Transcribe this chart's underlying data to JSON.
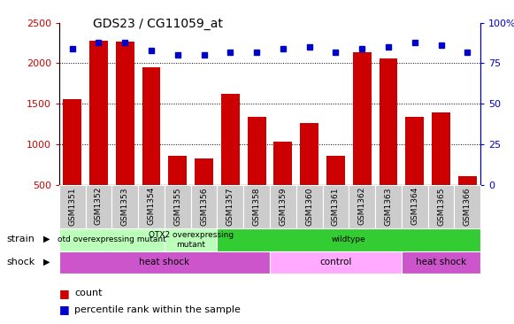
{
  "title": "GDS23 / CG11059_at",
  "samples": [
    "GSM1351",
    "GSM1352",
    "GSM1353",
    "GSM1354",
    "GSM1355",
    "GSM1356",
    "GSM1357",
    "GSM1358",
    "GSM1359",
    "GSM1360",
    "GSM1361",
    "GSM1362",
    "GSM1363",
    "GSM1364",
    "GSM1365",
    "GSM1366"
  ],
  "counts": [
    1560,
    2280,
    2270,
    1950,
    860,
    820,
    1620,
    1340,
    1030,
    1260,
    860,
    2140,
    2060,
    1340,
    1390,
    610
  ],
  "percentiles": [
    84,
    88,
    88,
    83,
    80,
    80,
    82,
    82,
    84,
    85,
    82,
    84,
    85,
    88,
    86,
    82
  ],
  "bar_color": "#cc0000",
  "dot_color": "#0000cc",
  "ylim_left": [
    500,
    2500
  ],
  "ylim_right": [
    0,
    100
  ],
  "yticks_left": [
    500,
    1000,
    1500,
    2000,
    2500
  ],
  "yticks_right": [
    0,
    25,
    50,
    75,
    100
  ],
  "grid_values": [
    1000,
    1500,
    2000
  ],
  "strain_groups": [
    {
      "label": "otd overexpressing mutant",
      "start": 0,
      "end": 4,
      "color": "#bbffbb"
    },
    {
      "label": "OTX2 overexpressing\nmutant",
      "start": 4,
      "end": 6,
      "color": "#bbffbb"
    },
    {
      "label": "wildtype",
      "start": 6,
      "end": 16,
      "color": "#33cc33"
    }
  ],
  "shock_groups": [
    {
      "label": "heat shock",
      "start": 0,
      "end": 8,
      "color": "#cc55cc"
    },
    {
      "label": "control",
      "start": 8,
      "end": 13,
      "color": "#ffaaff"
    },
    {
      "label": "heat shock",
      "start": 13,
      "end": 16,
      "color": "#cc55cc"
    }
  ],
  "right_label": "100%",
  "tick_label_bg": "#cccccc",
  "plot_bg": "#ffffff",
  "fig_bg": "#ffffff"
}
